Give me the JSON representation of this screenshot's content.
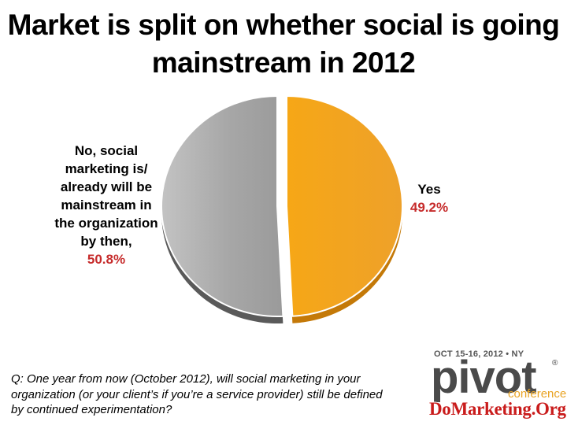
{
  "title": {
    "line1": "Market is split on whether social is going",
    "line2": "mainstream in 2012"
  },
  "chart_data": {
    "type": "pie",
    "title": "Market is split on whether social is going mainstream in 2012",
    "slices": [
      {
        "label": "Yes",
        "value": 49.2,
        "value_text": "49.2%",
        "color": "#f2a11d"
      },
      {
        "label": "No, social marketing is/ already will be mainstream in the organization by then,",
        "label_lines": [
          "No, social",
          "marketing is/",
          "already will be",
          "mainstream in",
          "the organization",
          "by then,"
        ],
        "value": 50.8,
        "value_text": "50.8%",
        "color": "#a9a9a9"
      }
    ],
    "start_angle_deg": 0,
    "exploded_slice": "Yes",
    "colors": {
      "yes_fill": "#f2a11d",
      "yes_side": "#c47908",
      "no_fill": "#a9a9a9",
      "no_side": "#5a5a5a",
      "pct_text": "#c62b2b"
    }
  },
  "question": {
    "lines": [
      "Q: One year from now (October 2012), will social marketing in your",
      "organization (or your client’s if you’re a service provider) still be defined",
      "by continued experimentation?"
    ]
  },
  "logo": {
    "date": "OCT 15-16, 2012 • NY",
    "word": "pivot",
    "registered": "®",
    "sub": "conference",
    "site": "DoMarketing.Org",
    "colors": {
      "word": "#4a4a4a",
      "sub": "#e9a323",
      "site": "#c91b1b"
    }
  }
}
